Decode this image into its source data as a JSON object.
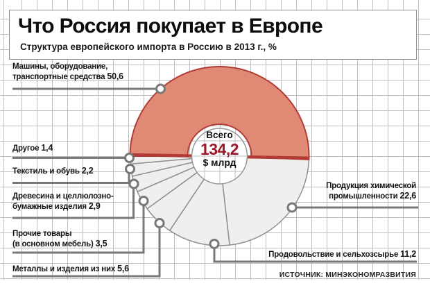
{
  "header": {
    "title": "Что Россия покупает в Европе",
    "subtitle": "Структура европейского импорта в Россию в 2013 г., %"
  },
  "chart_data": {
    "type": "pie",
    "unit": "%",
    "start_angle_deg": 180,
    "direction": "clockwise",
    "grid": true,
    "center_label": {
      "caption": "Всего",
      "value": "134,2",
      "unit": "$ млрд"
    },
    "segments": [
      {
        "id": "machines",
        "lines": [
          "Машины, оборудование,",
          "транспортные средства"
        ],
        "value": "50,6",
        "highlighted": true
      },
      {
        "id": "chemicals",
        "lines": [
          "Продукция химической",
          "промышленности"
        ],
        "value": "22,6",
        "highlighted": false
      },
      {
        "id": "food",
        "lines": [
          "Продовольствие и сельхозсырье"
        ],
        "value": "11,2",
        "highlighted": false
      },
      {
        "id": "metals",
        "lines": [
          "Металлы и изделия из них"
        ],
        "value": "5,6",
        "highlighted": false
      },
      {
        "id": "other-goods",
        "lines": [
          "Прочие товары",
          "(в основном мебель)"
        ],
        "value": "3,5",
        "highlighted": false
      },
      {
        "id": "wood",
        "lines": [
          "Древесина и целлюлозно-",
          "бумажные изделия"
        ],
        "value": "2,9",
        "highlighted": false
      },
      {
        "id": "textiles",
        "lines": [
          "Текстиль и обувь"
        ],
        "value": "2,2",
        "highlighted": false
      },
      {
        "id": "other",
        "lines": [
          "Другое"
        ],
        "value": "1,4",
        "highlighted": false
      }
    ],
    "colors": {
      "highlight_fill": "#E08A76",
      "highlight_stroke": "#B23B35",
      "segment_fill": "#F0EFED",
      "segment_stroke": "#8F8F8F",
      "leader_line": "#787878",
      "value_text": "#9C1A2B",
      "grid_line": "#BDBDBD"
    }
  },
  "source": "ИСТОЧНИК: МИНЭКОНОМРАЗВИТИЯ"
}
